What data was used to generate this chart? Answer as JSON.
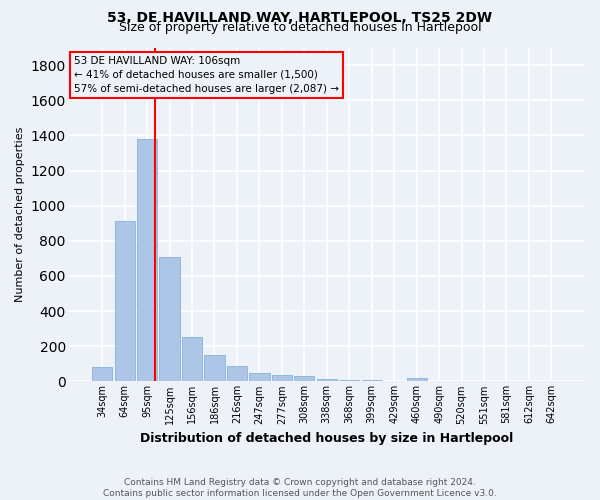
{
  "title": "53, DE HAVILLAND WAY, HARTLEPOOL, TS25 2DW",
  "subtitle": "Size of property relative to detached houses in Hartlepool",
  "xlabel": "Distribution of detached houses by size in Hartlepool",
  "ylabel": "Number of detached properties",
  "bar_color": "#adc6e8",
  "bar_edge_color": "#7aaad4",
  "categories": [
    "34sqm",
    "64sqm",
    "95sqm",
    "125sqm",
    "156sqm",
    "186sqm",
    "216sqm",
    "247sqm",
    "277sqm",
    "308sqm",
    "338sqm",
    "368sqm",
    "399sqm",
    "429sqm",
    "460sqm",
    "490sqm",
    "520sqm",
    "551sqm",
    "581sqm",
    "612sqm",
    "642sqm"
  ],
  "values": [
    82,
    910,
    1380,
    710,
    250,
    148,
    88,
    50,
    35,
    30,
    15,
    10,
    8,
    5,
    20,
    0,
    0,
    0,
    0,
    0,
    0
  ],
  "ylim": [
    0,
    1900
  ],
  "yticks": [
    0,
    200,
    400,
    600,
    800,
    1000,
    1200,
    1400,
    1600,
    1800
  ],
  "red_line_x": 2.36,
  "annotation_line1": "53 DE HAVILLAND WAY: 106sqm",
  "annotation_line2": "← 41% of detached houses are smaller (1,500)",
  "annotation_line3": "57% of semi-detached houses are larger (2,087) →",
  "footnote": "Contains HM Land Registry data © Crown copyright and database right 2024.\nContains public sector information licensed under the Open Government Licence v3.0.",
  "background_color": "#edf2f9",
  "grid_color": "#ffffff",
  "title_fontsize": 10,
  "subtitle_fontsize": 9,
  "ylabel_fontsize": 8,
  "xlabel_fontsize": 9,
  "tick_fontsize": 7,
  "annotation_fontsize": 7.5,
  "footnote_fontsize": 6.5
}
